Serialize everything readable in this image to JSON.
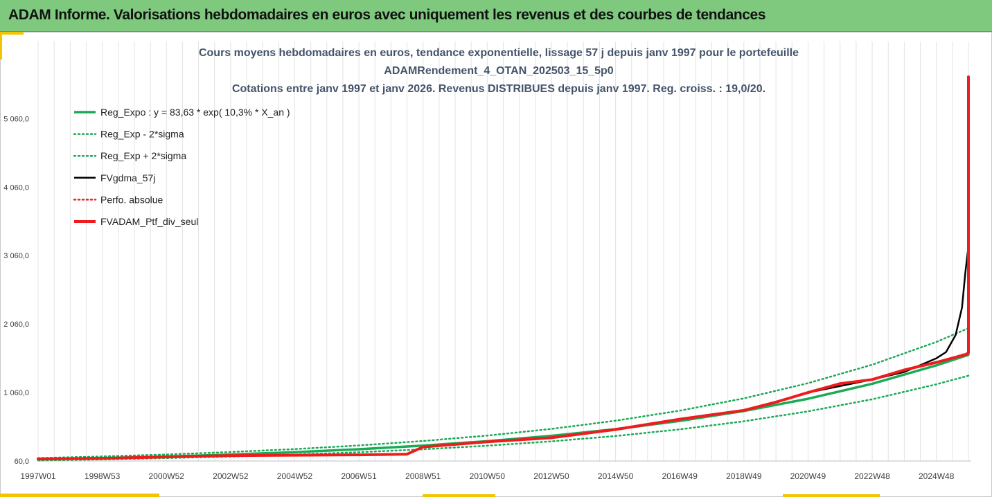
{
  "header": {
    "title": "ADAM Informe. Valorisations hebdomadaires en euros avec uniquement les revenus et des courbes de tendances"
  },
  "chart_data": {
    "type": "line",
    "title_lines": [
      "Cours moyens hebdomadaires  en euros, tendance exponentielle, lissage 57 j depuis janv 1997 pour le portefeuille",
      "ADAMRendement_4_OTAN_202503_15_5p0",
      "Cotations entre janv 1997 et janv 2026. Revenus DISTRIBUES depuis janv 1997. Reg. croiss. : 19,0/20."
    ],
    "x_range": [
      1997.0,
      2026.0
    ],
    "ylim": [
      60,
      5700
    ],
    "y_ticks": [
      {
        "value": 60,
        "label": "60,0"
      },
      {
        "value": 1060,
        "label": "1 060,0"
      },
      {
        "value": 2060,
        "label": "2 060,0"
      },
      {
        "value": 3060,
        "label": "3 060,0"
      },
      {
        "value": 4060,
        "label": "4 060,0"
      },
      {
        "value": 5060,
        "label": "5 060,0"
      }
    ],
    "x_ticks": [
      {
        "x": 1997.0,
        "label": "1997W01"
      },
      {
        "x": 1999.0,
        "label": "1998W53"
      },
      {
        "x": 2001.0,
        "label": "2000W52"
      },
      {
        "x": 2003.0,
        "label": "2002W52"
      },
      {
        "x": 2005.0,
        "label": "2004W52"
      },
      {
        "x": 2007.0,
        "label": "2006W51"
      },
      {
        "x": 2009.0,
        "label": "2008W51"
      },
      {
        "x": 2011.0,
        "label": "2010W50"
      },
      {
        "x": 2013.0,
        "label": "2012W50"
      },
      {
        "x": 2015.0,
        "label": "2014W50"
      },
      {
        "x": 2017.0,
        "label": "2016W49"
      },
      {
        "x": 2019.0,
        "label": "2018W49"
      },
      {
        "x": 2021.0,
        "label": "2020W49"
      },
      {
        "x": 2023.0,
        "label": "2022W48"
      },
      {
        "x": 2025.0,
        "label": "2024W48"
      }
    ],
    "grid": "vertical",
    "legend_position": "top-left",
    "series": [
      {
        "name": "Reg_Expo : y = 83,63 * exp( 10,3% *  X_an )",
        "color": "#1aaa55",
        "style": "solid",
        "width": 3.5,
        "x": [
          1997,
          1999,
          2001,
          2003,
          2005,
          2007,
          2009,
          2011,
          2013,
          2015,
          2017,
          2019,
          2021,
          2023,
          2025,
          2026
        ],
        "y": [
          84,
          103,
          126,
          155,
          189,
          232,
          285,
          349,
          428,
          525,
          644,
          790,
          969,
          1188,
          1457,
          1610
        ]
      },
      {
        "name": "Reg_Exp - 2*sigma",
        "color": "#1aaa55",
        "style": "dotted",
        "width": 2.5,
        "x": [
          1997,
          1999,
          2001,
          2003,
          2005,
          2007,
          2009,
          2011,
          2013,
          2015,
          2017,
          2019,
          2021,
          2023,
          2025,
          2026
        ],
        "y": [
          68,
          83,
          102,
          125,
          154,
          188,
          231,
          283,
          347,
          425,
          522,
          640,
          785,
          962,
          1180,
          1306
        ]
      },
      {
        "name": "Reg_Exp + 2*sigma",
        "color": "#1aaa55",
        "style": "dotted",
        "width": 2.5,
        "x": [
          1997,
          1999,
          2001,
          2003,
          2005,
          2007,
          2009,
          2011,
          2013,
          2015,
          2017,
          2019,
          2021,
          2023,
          2025,
          2026
        ],
        "y": [
          103,
          127,
          155,
          191,
          234,
          287,
          352,
          431,
          529,
          648,
          795,
          975,
          1196,
          1466,
          1798,
          2000
        ]
      },
      {
        "name": "FVgdma_57j",
        "color": "#000000",
        "style": "solid",
        "width": 2.5,
        "x": [
          1997,
          1999,
          2001,
          2003,
          2005,
          2007,
          2008.5,
          2009,
          2011,
          2013,
          2015,
          2017,
          2019,
          2020,
          2021,
          2023,
          2024,
          2025,
          2025.3,
          2025.6,
          2025.8,
          2025.9,
          2026
        ],
        "y": [
          90,
          98,
          120,
          140,
          145,
          150,
          160,
          265,
          340,
          400,
          520,
          670,
          800,
          920,
          1060,
          1250,
          1360,
          1560,
          1650,
          1900,
          2300,
          2800,
          3200
        ]
      },
      {
        "name": "Perfo. absolue",
        "color": "#ee1c1c",
        "style": "dotted",
        "width": 2.5,
        "x": [
          1997,
          1999,
          2001,
          2003,
          2005,
          2007,
          2008.5,
          2009,
          2011,
          2013,
          2015,
          2017,
          2019,
          2020,
          2021,
          2022,
          2023,
          2024,
          2025,
          2026
        ],
        "y": [
          90,
          98,
          120,
          140,
          145,
          150,
          160,
          265,
          340,
          400,
          520,
          670,
          800,
          920,
          1060,
          1190,
          1250,
          1390,
          1500,
          1640
        ]
      },
      {
        "name": "FVADAM_Ptf_div_seul",
        "color": "#ee1c1c",
        "style": "solid",
        "width": 4,
        "x": [
          1997,
          1999,
          2001,
          2003,
          2005,
          2007,
          2008.5,
          2009,
          2011,
          2013,
          2015,
          2017,
          2019,
          2020,
          2021,
          2022,
          2023,
          2024,
          2025,
          2025.95,
          2026,
          2026
        ],
        "y": [
          90,
          98,
          120,
          140,
          145,
          150,
          160,
          265,
          340,
          400,
          520,
          670,
          800,
          920,
          1060,
          1190,
          1250,
          1390,
          1500,
          1620,
          1640,
          5670
        ]
      }
    ]
  }
}
